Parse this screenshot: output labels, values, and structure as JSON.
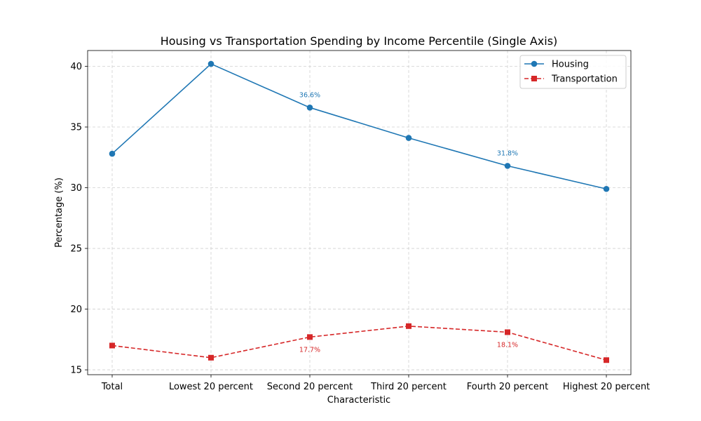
{
  "chart_data": {
    "type": "line",
    "title": "Housing vs Transportation Spending by Income Percentile (Single Axis)",
    "xlabel": "Characteristic",
    "ylabel": "Percentage (%)",
    "categories": [
      "Total",
      "Lowest 20 percent",
      "Second 20 percent",
      "Third 20 percent",
      "Fourth 20 percent",
      "Highest 20 percent"
    ],
    "ylim": [
      14.6,
      41.3
    ],
    "yticks": [
      15,
      20,
      25,
      30,
      35,
      40
    ],
    "grid": true,
    "legend_position": "top-right",
    "series": [
      {
        "name": "Housing",
        "values": [
          32.8,
          40.2,
          36.6,
          34.1,
          31.8,
          29.9
        ],
        "color": "#1f77b4",
        "marker": "circle",
        "linestyle": "solid",
        "annotations": [
          {
            "index": 2,
            "text": "36.6%",
            "placement": "above"
          },
          {
            "index": 4,
            "text": "31.8%",
            "placement": "above"
          }
        ]
      },
      {
        "name": "Transportation",
        "values": [
          17.0,
          16.0,
          17.7,
          18.6,
          18.1,
          15.8
        ],
        "color": "#d62728",
        "marker": "square",
        "linestyle": "dashed",
        "annotations": [
          {
            "index": 2,
            "text": "17.7%",
            "placement": "below"
          },
          {
            "index": 4,
            "text": "18.1%",
            "placement": "below"
          }
        ]
      }
    ]
  }
}
